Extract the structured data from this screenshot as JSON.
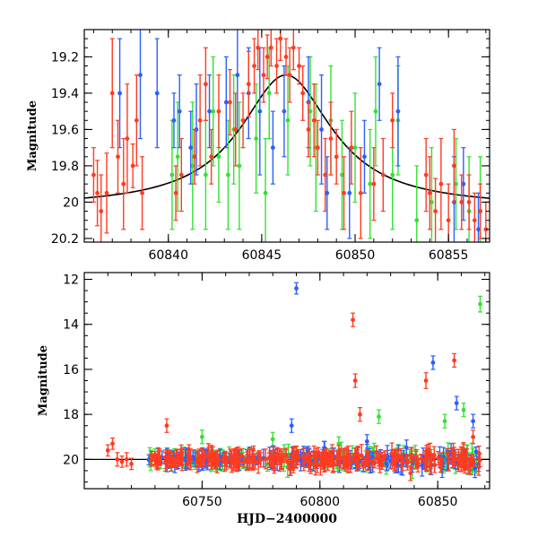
{
  "chart_data": [
    {
      "type": "scatter",
      "panel": "top",
      "xlabel": "",
      "ylabel": "Magnitude",
      "xlim": [
        60835.5,
        60857.2
      ],
      "ylim": [
        20.22,
        19.05
      ],
      "y_inverted": true,
      "x_ticks": [
        60840,
        60845,
        60850,
        60855
      ],
      "x_tick_labels": [
        "60840",
        "60845",
        "60850",
        "60855"
      ],
      "y_ticks": [
        19.2,
        19.4,
        19.6,
        19.8,
        20.0,
        20.2
      ],
      "y_tick_labels": [
        "19.2",
        "19.4",
        "19.6",
        "19.8",
        "20",
        "20.2"
      ],
      "model_curve": {
        "color": "#000000",
        "t0": 60846.3,
        "peak_magnitude": 19.3,
        "baseline_magnitude": 20.03,
        "width_days": 3.0
      },
      "series": [
        {
          "color": "#ff3b22",
          "points": [
            [
              60836.0,
              19.85,
              0.15
            ],
            [
              60836.2,
              19.95,
              0.18
            ],
            [
              60836.4,
              20.05,
              0.2
            ],
            [
              60836.7,
              19.95,
              0.22
            ],
            [
              60837.0,
              19.4,
              0.3
            ],
            [
              60837.3,
              19.75,
              0.2
            ],
            [
              60837.6,
              19.9,
              0.25
            ],
            [
              60837.8,
              19.65,
              0.3
            ],
            [
              60838.1,
              19.8,
              0.12
            ],
            [
              60838.3,
              19.55,
              0.25
            ],
            [
              60838.6,
              19.95,
              0.2
            ],
            [
              60840.4,
              19.95,
              0.15
            ],
            [
              60840.7,
              19.85,
              0.2
            ],
            [
              60841.4,
              19.75,
              0.15
            ],
            [
              60841.7,
              19.55,
              0.25
            ],
            [
              60842.0,
              19.35,
              0.2
            ],
            [
              60842.3,
              19.75,
              0.15
            ],
            [
              60842.7,
              19.5,
              0.2
            ],
            [
              60843.3,
              19.45,
              0.18
            ],
            [
              60843.6,
              19.6,
              0.2
            ],
            [
              60844.0,
              19.55,
              0.15
            ],
            [
              60844.3,
              19.35,
              0.18
            ],
            [
              60844.6,
              19.25,
              0.15
            ],
            [
              60844.8,
              19.15,
              0.12
            ],
            [
              60845.1,
              19.3,
              0.15
            ],
            [
              60845.3,
              19.2,
              0.12
            ],
            [
              60845.5,
              19.15,
              0.1
            ],
            [
              60845.8,
              19.25,
              0.15
            ],
            [
              60846.0,
              19.1,
              0.12
            ],
            [
              60846.3,
              19.2,
              0.1
            ],
            [
              60846.5,
              19.3,
              0.15
            ],
            [
              60846.7,
              19.15,
              0.12
            ],
            [
              60847.0,
              19.25,
              0.1
            ],
            [
              60847.2,
              19.4,
              0.15
            ],
            [
              60847.5,
              19.6,
              0.15
            ],
            [
              60847.8,
              19.55,
              0.2
            ],
            [
              60848.0,
              19.7,
              0.15
            ],
            [
              60848.4,
              19.85,
              0.2
            ],
            [
              60848.7,
              19.65,
              0.2
            ],
            [
              60849.0,
              19.75,
              0.15
            ],
            [
              60849.4,
              19.95,
              0.2
            ],
            [
              60849.8,
              19.7,
              0.2
            ],
            [
              60850.3,
              19.95,
              0.25
            ],
            [
              60851.0,
              19.9,
              0.2
            ],
            [
              60851.5,
              19.85,
              0.2
            ],
            [
              60852.0,
              19.55,
              0.15
            ],
            [
              60853.8,
              19.85,
              0.2
            ],
            [
              60854.0,
              19.95,
              0.2
            ],
            [
              60854.3,
              20.05,
              0.18
            ],
            [
              60854.6,
              19.9,
              0.25
            ],
            [
              60855.0,
              20.1,
              0.2
            ],
            [
              60855.3,
              19.8,
              0.2
            ],
            [
              60855.7,
              20.0,
              0.15
            ],
            [
              60856.1,
              20.0,
              0.15
            ],
            [
              60856.4,
              20.1,
              0.15
            ],
            [
              60856.7,
              20.05,
              0.15
            ],
            [
              60857.0,
              20.15,
              0.15
            ]
          ]
        },
        {
          "color": "#2a5fff",
          "points": [
            [
              60837.4,
              19.4,
              0.3
            ],
            [
              60838.5,
              19.3,
              0.35
            ],
            [
              60839.4,
              19.4,
              0.3
            ],
            [
              60840.3,
              19.55,
              0.15
            ],
            [
              60840.6,
              19.5,
              0.2
            ],
            [
              60841.2,
              19.7,
              0.2
            ],
            [
              60841.5,
              19.6,
              0.25
            ],
            [
              60842.2,
              19.5,
              0.2
            ],
            [
              60843.1,
              19.45,
              0.25
            ],
            [
              60843.7,
              19.3,
              0.3
            ],
            [
              60844.3,
              19.4,
              0.25
            ],
            [
              60844.9,
              19.5,
              0.35
            ],
            [
              60845.6,
              19.7,
              0.2
            ],
            [
              60846.2,
              19.5,
              0.25
            ],
            [
              60847.5,
              19.45,
              0.25
            ],
            [
              60848.2,
              19.6,
              0.3
            ],
            [
              60848.5,
              19.95,
              0.2
            ],
            [
              60849.7,
              19.95,
              0.25
            ],
            [
              60850.5,
              19.75,
              0.2
            ],
            [
              60851.3,
              19.35,
              0.2
            ],
            [
              60852.3,
              19.5,
              0.3
            ],
            [
              60855.3,
              20.0,
              0.25
            ],
            [
              60855.8,
              19.9,
              0.2
            ],
            [
              60856.6,
              20.15,
              0.2
            ]
          ]
        },
        {
          "color": "#35e035",
          "points": [
            [
              60840.2,
              19.85,
              0.3
            ],
            [
              60840.5,
              19.75,
              0.3
            ],
            [
              60841.3,
              19.8,
              0.35
            ],
            [
              60842.0,
              19.85,
              0.3
            ],
            [
              60842.4,
              19.5,
              0.3
            ],
            [
              60842.7,
              19.75,
              0.25
            ],
            [
              60843.2,
              19.85,
              0.3
            ],
            [
              60843.5,
              19.6,
              0.3
            ],
            [
              60843.8,
              19.8,
              0.35
            ],
            [
              60844.7,
              19.65,
              0.3
            ],
            [
              60845.2,
              19.95,
              0.3
            ],
            [
              60845.4,
              19.4,
              0.25
            ],
            [
              60846.4,
              19.55,
              0.3
            ],
            [
              60847.6,
              19.5,
              0.3
            ],
            [
              60847.9,
              19.7,
              0.35
            ],
            [
              60848.7,
              19.55,
              0.3
            ],
            [
              60849.3,
              19.85,
              0.3
            ],
            [
              60850.0,
              19.7,
              0.3
            ],
            [
              60850.8,
              19.9,
              0.3
            ],
            [
              60851.1,
              19.5,
              0.3
            ],
            [
              60852.0,
              19.85,
              0.3
            ],
            [
              60852.3,
              19.55,
              0.3
            ],
            [
              60853.3,
              20.1,
              0.3
            ],
            [
              60854.1,
              20.0,
              0.3
            ],
            [
              60855.4,
              19.9,
              0.25
            ],
            [
              60856.1,
              20.05,
              0.3
            ],
            [
              60856.7,
              20.05,
              0.3
            ]
          ]
        }
      ]
    },
    {
      "type": "scatter",
      "panel": "bottom",
      "xlabel": "HJD−2400000",
      "ylabel": "Magnitude",
      "xlim": [
        60700,
        60872
      ],
      "ylim": [
        21.3,
        11.7
      ],
      "y_inverted": true,
      "x_ticks": [
        60750,
        60800,
        60850
      ],
      "x_tick_labels": [
        "60750",
        "60800",
        "60850"
      ],
      "y_ticks": [
        12,
        14,
        16,
        18,
        20
      ],
      "y_tick_labels": [
        "12",
        "14",
        "16",
        "18",
        "20"
      ],
      "baseline_magnitude": 20.0,
      "band_range": [
        60727,
        60868
      ],
      "series": [
        {
          "color": "#ff3b22",
          "outliers": [
            [
              60710,
              19.6,
              0.25
            ],
            [
              60712,
              19.3,
              0.25
            ],
            [
              60714,
              20.0,
              0.3
            ],
            [
              60716,
              20.1,
              0.25
            ],
            [
              60718,
              20.0,
              0.3
            ],
            [
              60720,
              20.2,
              0.25
            ],
            [
              60735,
              18.5,
              0.3
            ],
            [
              60814,
              13.8,
              0.3
            ],
            [
              60815,
              16.5,
              0.3
            ],
            [
              60817,
              18.0,
              0.3
            ],
            [
              60845,
              16.5,
              0.35
            ],
            [
              60857,
              15.6,
              0.3
            ],
            [
              60865,
              19.0,
              0.3
            ]
          ]
        },
        {
          "color": "#2a5fff",
          "outliers": [
            [
              60788,
              18.5,
              0.3
            ],
            [
              60790,
              12.4,
              0.25
            ],
            [
              60802,
              19.5,
              0.3
            ],
            [
              60820,
              19.2,
              0.3
            ],
            [
              60848,
              15.7,
              0.3
            ],
            [
              60858,
              17.5,
              0.3
            ],
            [
              60865,
              18.3,
              0.3
            ]
          ]
        },
        {
          "color": "#35e035",
          "outliers": [
            [
              60750,
              19.0,
              0.3
            ],
            [
              60780,
              19.1,
              0.3
            ],
            [
              60808,
              19.3,
              0.3
            ],
            [
              60825,
              18.1,
              0.3
            ],
            [
              60853,
              18.3,
              0.3
            ],
            [
              60861,
              17.8,
              0.3
            ],
            [
              60868,
              13.1,
              0.35
            ]
          ]
        }
      ]
    }
  ]
}
